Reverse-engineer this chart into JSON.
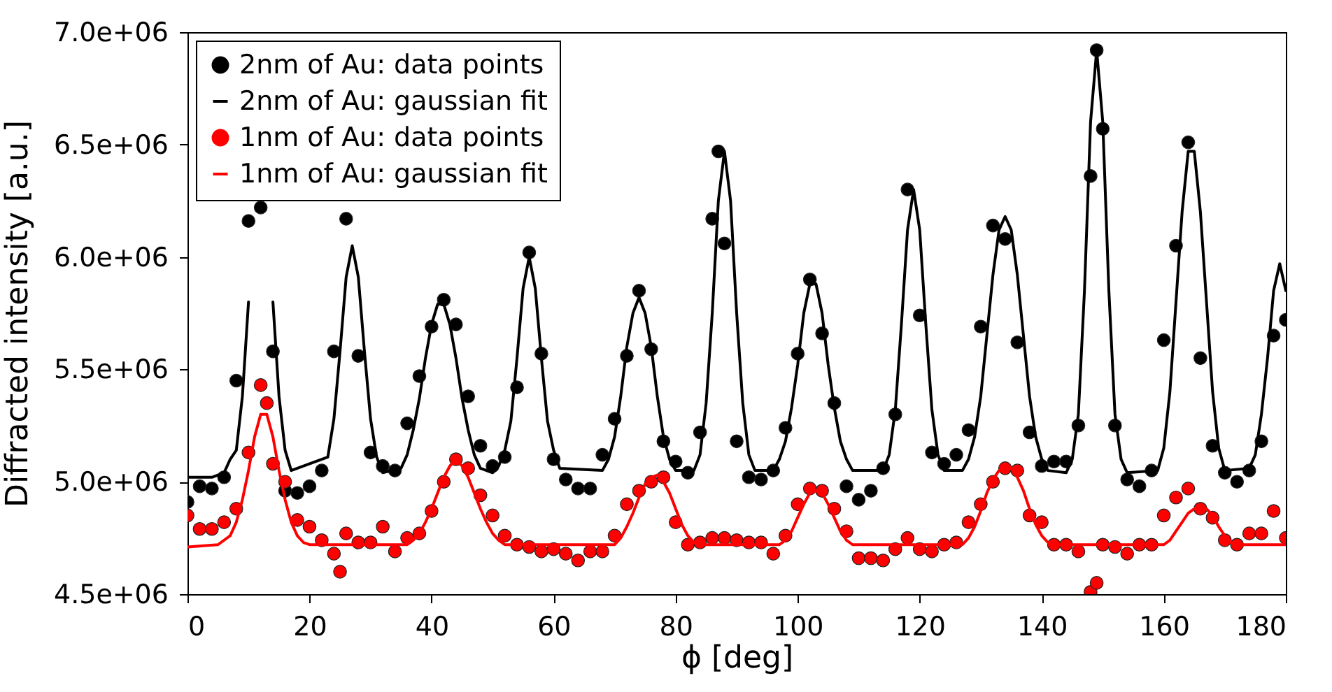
{
  "chart_data": {
    "type": "scatter",
    "xlabel": "ϕ [deg]",
    "ylabel": "Diffracted intensity [a.u.]",
    "xlim": [
      0,
      180
    ],
    "xticks": [
      0,
      20,
      40,
      60,
      80,
      100,
      120,
      140,
      160,
      180
    ],
    "ylim": [
      4500000,
      7000000
    ],
    "yticks": [
      {
        "value": 4500000,
        "label": "4.5e+06"
      },
      {
        "value": 5000000,
        "label": "5.0e+06"
      },
      {
        "value": 5500000,
        "label": "5.5e+06"
      },
      {
        "value": 6000000,
        "label": "6.0e+06"
      },
      {
        "value": 6500000,
        "label": "6.5e+06"
      },
      {
        "value": 7000000,
        "label": "7.0e+06"
      }
    ],
    "grid": false,
    "legend": "top left",
    "series": [
      {
        "name": "2nm of Au: data points",
        "marker": "circle",
        "color": "#000000",
        "x": [
          0,
          2,
          4,
          6,
          8,
          10,
          12,
          14,
          16,
          18,
          20,
          22,
          24,
          26,
          28,
          30,
          32,
          34,
          36,
          38,
          40,
          42,
          44,
          46,
          48,
          50,
          52,
          54,
          56,
          58,
          60,
          62,
          64,
          66,
          68,
          70,
          72,
          74,
          76,
          78,
          80,
          82,
          84,
          86,
          87,
          88,
          90,
          92,
          94,
          96,
          98,
          100,
          102,
          104,
          106,
          108,
          110,
          112,
          114,
          116,
          118,
          120,
          122,
          124,
          126,
          128,
          130,
          132,
          134,
          136,
          138,
          140,
          142,
          144,
          146,
          148,
          149,
          150,
          152,
          154,
          156,
          158,
          160,
          162,
          164,
          166,
          168,
          170,
          172,
          174,
          176,
          178,
          180
        ],
        "values": [
          4910000,
          4980000,
          4970000,
          5020000,
          5450000,
          6160000,
          6220000,
          5580000,
          4960000,
          4950000,
          4980000,
          5050000,
          5580000,
          6170000,
          5560000,
          5130000,
          5070000,
          5050000,
          5260000,
          5470000,
          5690000,
          5810000,
          5700000,
          5380000,
          5160000,
          5070000,
          5110000,
          5420000,
          6020000,
          5570000,
          5100000,
          5010000,
          4970000,
          4970000,
          5120000,
          5280000,
          5560000,
          5850000,
          5590000,
          5180000,
          5090000,
          5040000,
          5220000,
          6170000,
          6470000,
          6060000,
          5180000,
          5020000,
          5010000,
          5050000,
          5240000,
          5570000,
          5900000,
          5660000,
          5350000,
          4980000,
          4920000,
          4960000,
          5060000,
          5300000,
          6300000,
          5740000,
          5130000,
          5080000,
          5120000,
          5230000,
          5690000,
          6140000,
          6080000,
          5620000,
          5220000,
          5070000,
          5090000,
          5090000,
          5250000,
          6360000,
          6920000,
          6570000,
          5250000,
          5010000,
          4980000,
          5050000,
          5630000,
          6050000,
          6510000,
          5550000,
          5160000,
          5040000,
          5000000,
          5050000,
          5180000,
          5650000,
          5720000
        ]
      },
      {
        "name": "2nm of Au: gaussian fit",
        "type": "line",
        "line_style": "solid",
        "color": "#000000",
        "x": [
          0,
          4,
          6,
          7,
          8,
          9,
          10,
          11,
          12,
          13,
          14,
          15,
          16,
          17,
          23,
          24,
          25,
          26,
          27,
          28,
          29,
          30,
          31,
          32,
          35,
          36,
          37,
          38,
          39,
          40,
          41,
          42,
          43,
          44,
          45,
          46,
          47,
          48,
          50,
          51,
          52,
          53,
          54,
          55,
          56,
          57,
          58,
          59,
          60,
          61,
          68,
          69,
          70,
          71,
          72,
          73,
          74,
          75,
          76,
          77,
          78,
          79,
          80,
          83,
          84,
          85,
          86,
          87,
          88,
          89,
          90,
          91,
          92,
          93,
          96,
          97,
          98,
          99,
          100,
          101,
          102,
          103,
          104,
          105,
          106,
          107,
          108,
          109,
          114,
          115,
          116,
          117,
          118,
          119,
          120,
          121,
          122,
          123,
          124,
          127,
          128,
          129,
          130,
          131,
          132,
          133,
          134,
          135,
          136,
          137,
          138,
          139,
          140,
          141,
          144,
          145,
          146,
          147,
          148,
          149,
          150,
          151,
          152,
          153,
          154,
          159,
          160,
          161,
          162,
          163,
          164,
          165,
          166,
          167,
          168,
          169,
          170,
          174,
          175,
          176,
          177,
          178,
          179,
          180
        ],
        "values": [
          5020000,
          5020000,
          5040000,
          5100000,
          5140000,
          5380000,
          5800000,
          null,
          null,
          null,
          5800000,
          5380000,
          5140000,
          5050000,
          5110000,
          5280000,
          5580000,
          5910000,
          6050000,
          5910000,
          5580000,
          5280000,
          5110000,
          5040000,
          5060000,
          5120000,
          5230000,
          5370000,
          5550000,
          5700000,
          5790000,
          5790000,
          5700000,
          5550000,
          5370000,
          5230000,
          5120000,
          5060000,
          5040000,
          5070000,
          5140000,
          5270000,
          5550000,
          5860000,
          6000000,
          5860000,
          5550000,
          5270000,
          5140000,
          5060000,
          5050000,
          5100000,
          5200000,
          5380000,
          5600000,
          5750000,
          5820000,
          5750000,
          5600000,
          5380000,
          5200000,
          5100000,
          5050000,
          5050000,
          5120000,
          5350000,
          5750000,
          6250000,
          6470000,
          6250000,
          5750000,
          5350000,
          5120000,
          5050000,
          5050000,
          5100000,
          5180000,
          5330000,
          5520000,
          5750000,
          5880000,
          5880000,
          5750000,
          5520000,
          5330000,
          5180000,
          5100000,
          5050000,
          5050000,
          5120000,
          5320000,
          5700000,
          6120000,
          6300000,
          6120000,
          5700000,
          5320000,
          5120000,
          5050000,
          5050000,
          5100000,
          5200000,
          5380000,
          5650000,
          5920000,
          6120000,
          6180000,
          6120000,
          5920000,
          5650000,
          5380000,
          5200000,
          5100000,
          5050000,
          5040000,
          5100000,
          5300000,
          5850000,
          6600000,
          6920000,
          6600000,
          5850000,
          5300000,
          5100000,
          5040000,
          5050000,
          5150000,
          5400000,
          5800000,
          6200000,
          6470000,
          6470000,
          6200000,
          5800000,
          5400000,
          5150000,
          5050000,
          5060000,
          5120000,
          5300000,
          5550000,
          5850000,
          5970000,
          5850000
        ]
      },
      {
        "name": "1nm of Au: data points",
        "marker": "circle",
        "color": "#ff0000",
        "x": [
          0,
          2,
          4,
          6,
          8,
          10,
          12,
          13,
          14,
          16,
          18,
          20,
          22,
          24,
          25,
          26,
          28,
          30,
          32,
          34,
          36,
          38,
          40,
          42,
          44,
          46,
          48,
          50,
          52,
          54,
          56,
          58,
          60,
          62,
          64,
          66,
          68,
          70,
          72,
          74,
          76,
          78,
          80,
          82,
          84,
          86,
          88,
          90,
          92,
          94,
          96,
          98,
          100,
          102,
          104,
          106,
          108,
          110,
          112,
          114,
          116,
          118,
          120,
          122,
          124,
          126,
          128,
          130,
          132,
          134,
          136,
          138,
          140,
          142,
          144,
          146,
          148,
          149,
          150,
          152,
          154,
          156,
          158,
          160,
          162,
          164,
          166,
          168,
          170,
          172,
          174,
          176,
          178,
          180
        ],
        "values": [
          4850000,
          4790000,
          4790000,
          4820000,
          4880000,
          5130000,
          5430000,
          5350000,
          5080000,
          5000000,
          4830000,
          4800000,
          4740000,
          4680000,
          4600000,
          4770000,
          4730000,
          4730000,
          4800000,
          4690000,
          4750000,
          4770000,
          4870000,
          5000000,
          5100000,
          5060000,
          4940000,
          4850000,
          4760000,
          4720000,
          4710000,
          4690000,
          4700000,
          4680000,
          4650000,
          4690000,
          4690000,
          4760000,
          4900000,
          4960000,
          5000000,
          5020000,
          4820000,
          4720000,
          4730000,
          4750000,
          4750000,
          4740000,
          4730000,
          4730000,
          4680000,
          4760000,
          4900000,
          4970000,
          4960000,
          4880000,
          4780000,
          4660000,
          4660000,
          4650000,
          4700000,
          4750000,
          4700000,
          4690000,
          4720000,
          4730000,
          4820000,
          4900000,
          5000000,
          5060000,
          5050000,
          4850000,
          4820000,
          4720000,
          4720000,
          4690000,
          4510000,
          4550000,
          4720000,
          4710000,
          4680000,
          4720000,
          4720000,
          4850000,
          4930000,
          4970000,
          4880000,
          4840000,
          4740000,
          4720000,
          4770000,
          4770000,
          4870000,
          4750000
        ]
      },
      {
        "name": "1nm of Au: gaussian fit",
        "type": "line",
        "line_style": "solid",
        "color": "#ff0000",
        "x": [
          0,
          5,
          7,
          8,
          9,
          10,
          11,
          12,
          13,
          14,
          15,
          16,
          17,
          18,
          19,
          20,
          36,
          37,
          38,
          39,
          40,
          41,
          42,
          43,
          44,
          45,
          46,
          47,
          48,
          49,
          50,
          51,
          52,
          70,
          71,
          72,
          73,
          74,
          75,
          76,
          77,
          78,
          79,
          80,
          81,
          82,
          83,
          84,
          97,
          98,
          99,
          100,
          101,
          102,
          103,
          104,
          105,
          106,
          107,
          108,
          109,
          127,
          128,
          129,
          130,
          131,
          132,
          133,
          134,
          135,
          136,
          137,
          138,
          139,
          140,
          141,
          142,
          160,
          161,
          162,
          163,
          164,
          165,
          166,
          167,
          168,
          169,
          170,
          171,
          172,
          180
        ],
        "values": [
          4710000,
          4720000,
          4760000,
          4820000,
          4920000,
          5050000,
          5200000,
          5300000,
          5300000,
          5200000,
          5050000,
          4920000,
          4820000,
          4760000,
          4730000,
          4720000,
          4720000,
          4740000,
          4770000,
          4820000,
          4880000,
          4950000,
          5020000,
          5070000,
          5100000,
          5070000,
          5020000,
          4950000,
          4880000,
          4820000,
          4770000,
          4740000,
          4720000,
          4720000,
          4750000,
          4800000,
          4860000,
          4930000,
          4990000,
          5020000,
          5030000,
          5000000,
          4950000,
          4880000,
          4810000,
          4760000,
          4730000,
          4720000,
          4720000,
          4740000,
          4780000,
          4840000,
          4900000,
          4950000,
          4960000,
          4950000,
          4900000,
          4840000,
          4780000,
          4740000,
          4720000,
          4720000,
          4750000,
          4800000,
          4870000,
          4950000,
          5010000,
          5050000,
          5060000,
          5060000,
          5020000,
          4960000,
          4880000,
          4810000,
          4760000,
          4730000,
          4720000,
          4720000,
          4740000,
          4780000,
          4820000,
          4860000,
          4880000,
          4890000,
          4880000,
          4850000,
          4800000,
          4760000,
          4730000,
          4720000,
          4720000
        ]
      }
    ]
  }
}
